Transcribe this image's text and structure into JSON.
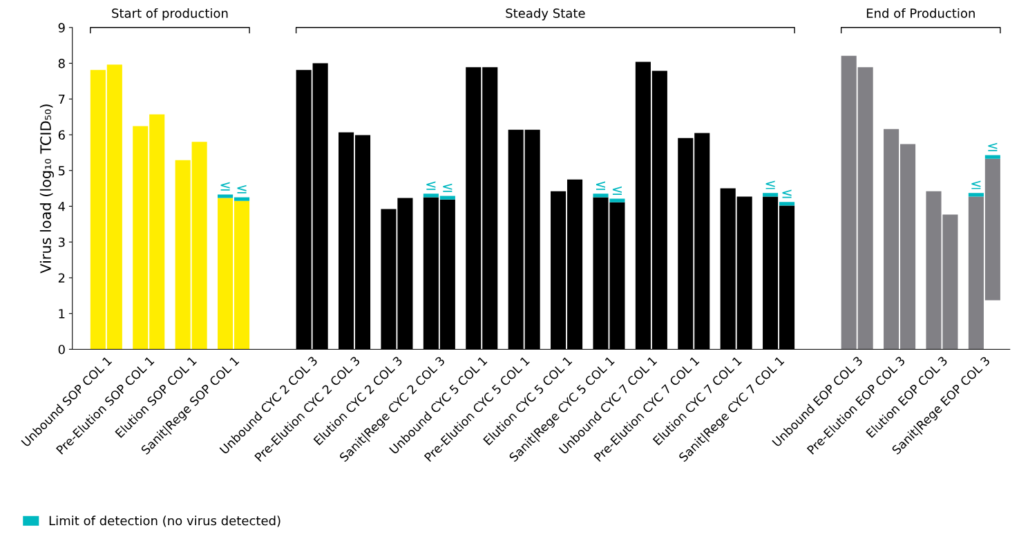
{
  "chart_data": {
    "type": "bar",
    "ylabel": "Virus load (log₁₀ TCID₅₀)",
    "categories": [
      "Unbound SOP COL 1",
      "Pre-Elution SOP COL 1",
      "Elution SOP COL 1",
      "Sanit|Rege SOP COL 1",
      "Unbound CYC 2 COL 3",
      "Pre-Elution CYC 2 COL 3",
      "Elution CYC 2 COL 3",
      "Sanit|Rege CYC 2 COL 3",
      "Unbound CYC 5 COL 1",
      "Pre-Elution CYC 5 COL 1",
      "Elution CYC 5 COL 1",
      "Sanit|Rege CYC 5 COL 1",
      "Unbound CYC 7 COL 1",
      "Pre-Elution CYC 7 COL 1",
      "Elution CYC 7 COL 1",
      "Sanit|Rege CYC 7 COL 1",
      "Unbound EOP COL 3",
      "Pre-Elution EOP COL 3",
      "Elution EOP COL 3",
      "Sanit|Rege EOP COL 3"
    ],
    "series": [
      {
        "colors": [
          "#ffed00",
          "#ffed00",
          "#ffed00",
          "#ffed00",
          "#000000",
          "#000000",
          "#000000",
          "#000000",
          "#000000",
          "#000000",
          "#000000",
          "#000000",
          "#000000",
          "#000000",
          "#000000",
          "#000000",
          "#818085",
          "#818085",
          "#818085",
          "#818085"
        ],
        "values": [
          7.81,
          6.24,
          5.29,
          4.23,
          7.81,
          6.07,
          3.92,
          4.25,
          7.89,
          6.14,
          4.42,
          4.25,
          8.04,
          5.91,
          4.5,
          4.27,
          8.21,
          6.16,
          4.42,
          4.27
        ]
      },
      {
        "colors": [
          "#ffed00",
          "#ffed00",
          "#ffed00",
          "#ffed00",
          "#000000",
          "#000000",
          "#000000",
          "#000000",
          "#000000",
          "#000000",
          "#000000",
          "#000000",
          "#000000",
          "#000000",
          "#000000",
          "#000000",
          "#818085",
          "#818085",
          "#818085",
          "#818085"
        ],
        "values": [
          7.96,
          6.57,
          5.8,
          4.15,
          8.0,
          5.99,
          4.23,
          4.19,
          7.89,
          6.14,
          4.75,
          4.11,
          7.79,
          6.05,
          4.27,
          4.02,
          7.89,
          5.74,
          3.77,
          3.96
        ],
        "base": [
          0,
          0,
          0,
          0,
          0,
          0,
          0,
          0,
          0,
          0,
          0,
          0,
          0,
          0,
          0,
          0,
          0,
          0,
          0,
          1.37
        ]
      },
      {
        "name": "Limit of detection (no virus detected)",
        "color": "#00b8c0",
        "values": [
          null,
          null,
          null,
          0.1,
          null,
          null,
          null,
          0.1,
          null,
          null,
          null,
          0.1,
          null,
          null,
          null,
          0.1,
          null,
          null,
          null,
          0.1
        ],
        "base": [
          null,
          null,
          null,
          4.23,
          null,
          null,
          null,
          4.25,
          null,
          null,
          null,
          4.25,
          null,
          null,
          null,
          4.27,
          null,
          null,
          null,
          4.27
        ],
        "value_labels": [
          null,
          null,
          null,
          "≤",
          null,
          null,
          null,
          "≤",
          null,
          null,
          null,
          "≤",
          null,
          null,
          null,
          "≤",
          null,
          null,
          null,
          "≤"
        ]
      },
      {
        "color": "#00b8c0",
        "values": [
          null,
          null,
          null,
          0.1,
          null,
          null,
          null,
          0.1,
          null,
          null,
          null,
          0.1,
          null,
          null,
          null,
          0.1,
          null,
          null,
          null,
          0.1
        ],
        "base": [
          null,
          null,
          null,
          4.15,
          null,
          null,
          null,
          4.19,
          null,
          null,
          null,
          4.11,
          null,
          null,
          null,
          4.02,
          null,
          null,
          null,
          5.33
        ],
        "value_labels": [
          null,
          null,
          null,
          "≤",
          null,
          null,
          null,
          "≤",
          null,
          null,
          null,
          "≤",
          null,
          null,
          null,
          "≤",
          null,
          null,
          null,
          "≤"
        ]
      }
    ],
    "annotations": [
      "Start of production",
      "Steady State",
      "End of Production"
    ],
    "ylim": [
      0,
      9
    ],
    "yticks": [
      0,
      1,
      2,
      3,
      4,
      5,
      6,
      7,
      8,
      9
    ],
    "grid": false,
    "legend": "bottom left"
  }
}
